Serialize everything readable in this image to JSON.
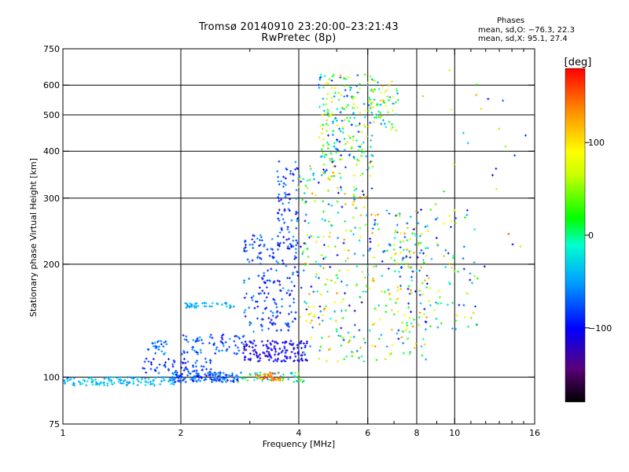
{
  "title_line1": "Tromsø 20140910 23:20:00–23:21:43",
  "title_line2": "RwPretec (8p)",
  "phases": {
    "heading": "Phases",
    "o_stats": "mean, sd,O: −76.3, 22.3",
    "x_stats": "mean, sd,X:  95.1, 27.4"
  },
  "colorbar": {
    "label": "[deg]",
    "range": [
      -180,
      180
    ],
    "ticks": [
      "100",
      "0",
      "−100"
    ],
    "tick_values": [
      100,
      0,
      -100
    ]
  },
  "chart_data": {
    "type": "scatter",
    "xlabel": "Frequency [MHz]",
    "ylabel": "Stationary phase Virtual Height [km]",
    "xscale": "log",
    "yscale": "log",
    "xlim": [
      1,
      16
    ],
    "ylim": [
      75,
      750
    ],
    "xticks": [
      1,
      2,
      4,
      6,
      8,
      10,
      16
    ],
    "yticks": [
      75,
      100,
      200,
      300,
      400,
      500,
      600,
      750
    ],
    "x_gridlines": [
      2,
      4,
      6,
      8,
      10
    ],
    "y_gridlines": [
      100,
      200,
      300,
      400,
      500,
      600
    ],
    "grid": true,
    "color_by": "phase [deg]",
    "clusters": [
      {
        "x": [
          1.0,
          1.95
        ],
        "y": [
          95,
          100
        ],
        "phase": [
          -60,
          -20
        ],
        "count": 120
      },
      {
        "x": [
          1.9,
          2.8
        ],
        "y": [
          97,
          103
        ],
        "phase": [
          -110,
          -40
        ],
        "count": 130
      },
      {
        "x": [
          1.6,
          2.4
        ],
        "y": [
          102,
          112
        ],
        "phase": [
          -110,
          -60
        ],
        "count": 60
      },
      {
        "x": [
          1.65,
          1.85
        ],
        "y": [
          115,
          125
        ],
        "phase": [
          -100,
          -40
        ],
        "count": 25
      },
      {
        "x": [
          2.0,
          2.9
        ],
        "y": [
          115,
          130
        ],
        "phase": [
          -110,
          -50
        ],
        "count": 70
      },
      {
        "x": [
          2.05,
          2.75
        ],
        "y": [
          153,
          158
        ],
        "phase": [
          -60,
          -30
        ],
        "count": 40
      },
      {
        "x": [
          2.75,
          4.2
        ],
        "y": [
          97,
          103
        ],
        "phase": [
          -70,
          60
        ],
        "count": 50
      },
      {
        "x": [
          3.1,
          3.6
        ],
        "y": [
          98,
          103
        ],
        "phase": [
          120,
          160
        ],
        "count": 35
      },
      {
        "x": [
          2.9,
          4.2
        ],
        "y": [
          110,
          125
        ],
        "phase": [
          -130,
          -90
        ],
        "count": 140
      },
      {
        "x": [
          2.9,
          4.0
        ],
        "y": [
          130,
          240
        ],
        "phase": [
          -120,
          -50
        ],
        "count": 180
      },
      {
        "x": [
          3.5,
          4.0
        ],
        "y": [
          220,
          380
        ],
        "phase": [
          -110,
          -50
        ],
        "count": 80
      },
      {
        "x": [
          4.0,
          8.5
        ],
        "y": [
          110,
          280
        ],
        "phase": [
          -120,
          140
        ],
        "count": 330
      },
      {
        "x": [
          4.0,
          6.2
        ],
        "y": [
          280,
          380
        ],
        "phase": [
          -120,
          140
        ],
        "count": 90
      },
      {
        "x": [
          4.5,
          6.2
        ],
        "y": [
          380,
          640
        ],
        "phase": [
          -100,
          120
        ],
        "count": 200
      },
      {
        "x": [
          6.0,
          7.2
        ],
        "y": [
          450,
          620
        ],
        "phase": [
          -60,
          120
        ],
        "count": 60
      },
      {
        "x": [
          7.0,
          11.5
        ],
        "y": [
          130,
          280
        ],
        "phase": [
          -120,
          120
        ],
        "count": 120
      },
      {
        "x": [
          8.0,
          16.0
        ],
        "y": [
          180,
          680
        ],
        "phase": [
          -120,
          160
        ],
        "count": 30
      }
    ]
  }
}
